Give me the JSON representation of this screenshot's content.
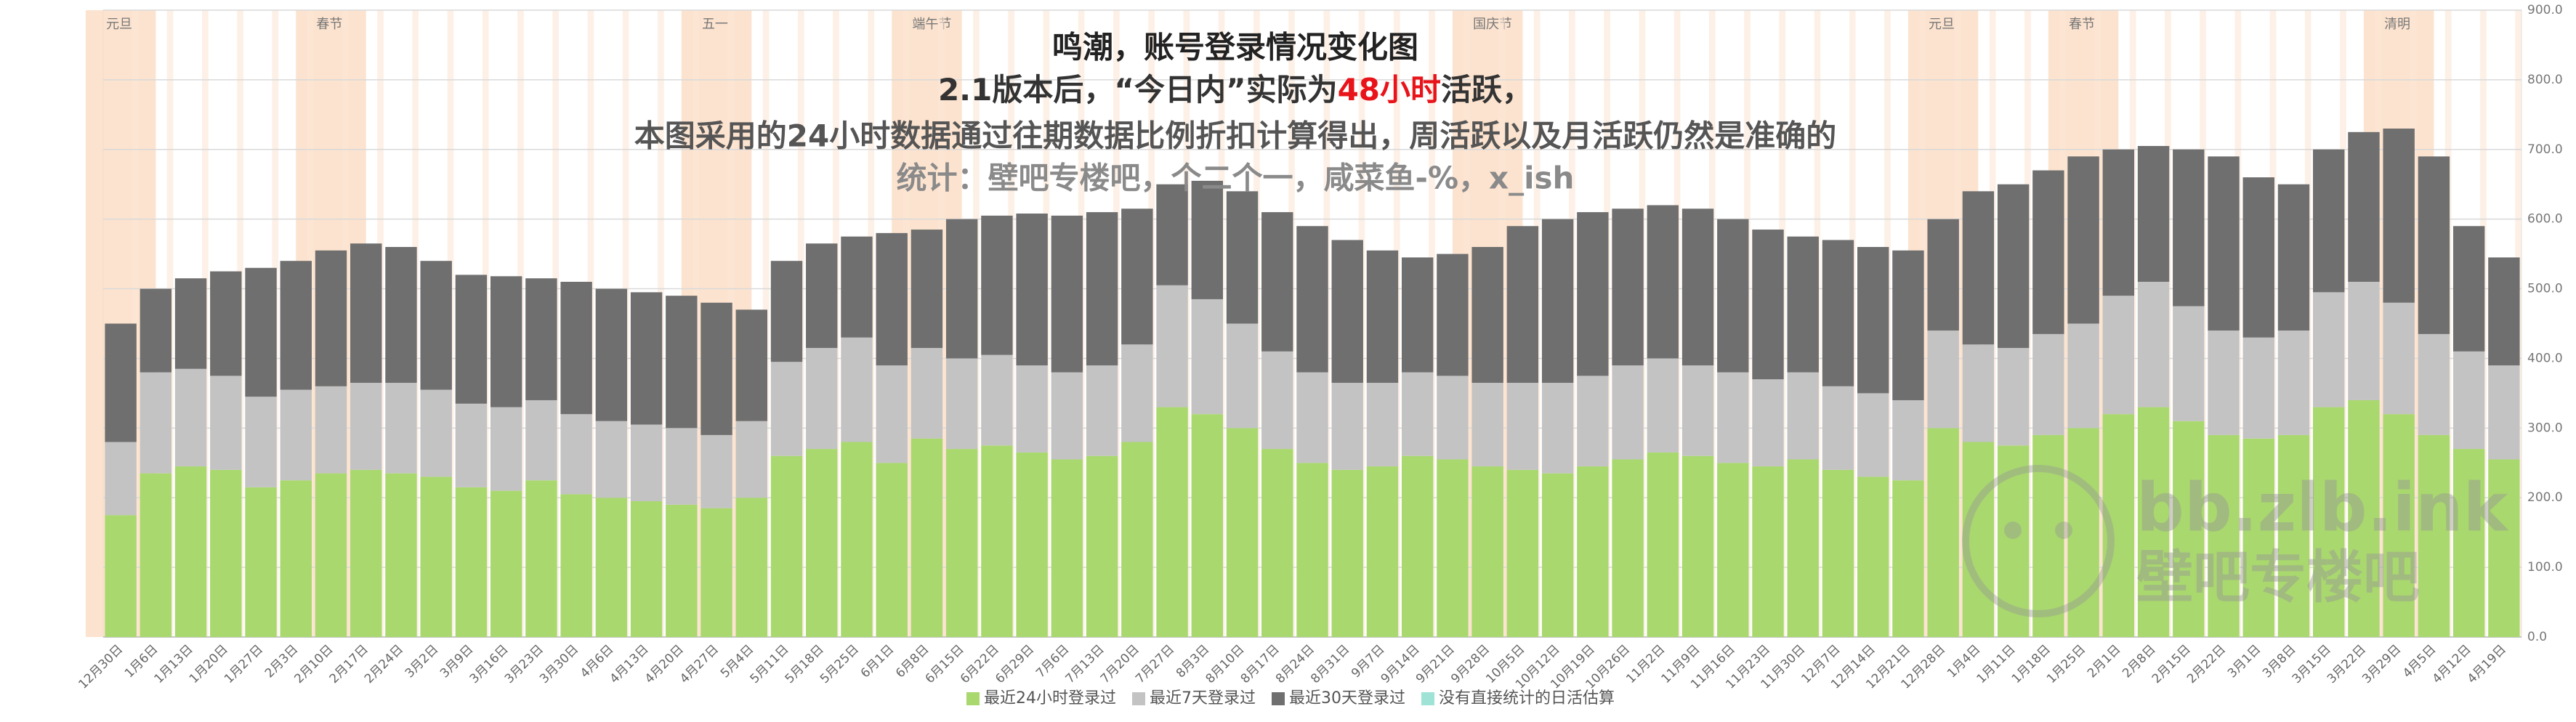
{
  "chart_data": {
    "type": "stacked_bar",
    "title": "鸣潮，账号登录情况变化图",
    "subtitle_parts": [
      "2.1版本后，“今日内”实际为",
      "48小时",
      "活跃，"
    ],
    "notes": [
      "本图采用的24小时数据通过往期数据比例折扣计算得出，周活跃以及月活跃仍然是准确的",
      "统计：壁吧专楼吧，个二个一，咸菜鱼-%，x_ish"
    ],
    "categories": [
      "12月30日",
      "1月6日",
      "1月13日",
      "1月20日",
      "1月27日",
      "2月3日",
      "2月10日",
      "2月17日",
      "2月24日",
      "3月2日",
      "3月9日",
      "3月16日",
      "3月23日",
      "3月30日",
      "4月6日",
      "4月13日",
      "4月20日",
      "4月27日",
      "5月4日",
      "5月11日",
      "5月18日",
      "5月25日",
      "6月1日",
      "6月8日",
      "6月15日",
      "6月22日",
      "6月29日",
      "7月6日",
      "7月13日",
      "7月20日",
      "7月27日",
      "8月3日",
      "8月10日",
      "8月17日",
      "8月24日",
      "8月31日",
      "9月7日",
      "9月14日",
      "9月21日",
      "9月28日",
      "10月5日",
      "10月12日",
      "10月19日",
      "10月26日",
      "11月2日",
      "11月9日",
      "11月16日",
      "11月23日",
      "11月30日",
      "12月7日",
      "12月14日",
      "12月21日",
      "12月28日",
      "1月4日",
      "1月11日",
      "1月18日",
      "1月25日",
      "2月1日",
      "2月8日",
      "2月15日",
      "2月22日",
      "3月1日",
      "3月8日",
      "3月15日",
      "3月22日",
      "3月29日",
      "4月5日",
      "4月12日",
      "4月19日"
    ],
    "series": [
      {
        "name": "最近24小时登录过",
        "color": "#a9d86e",
        "values": [
          175,
          235,
          245,
          240,
          215,
          225,
          235,
          240,
          235,
          230,
          215,
          210,
          225,
          205,
          200,
          195,
          190,
          185,
          200,
          260,
          270,
          280,
          250,
          285,
          270,
          275,
          265,
          255,
          260,
          280,
          330,
          320,
          300,
          270,
          250,
          240,
          245,
          260,
          255,
          245,
          240,
          235,
          245,
          255,
          265,
          260,
          250,
          245,
          255,
          240,
          230,
          225,
          300,
          280,
          275,
          290,
          300,
          320,
          330,
          310,
          290,
          285,
          290,
          330,
          340,
          320,
          290,
          270,
          255
        ]
      },
      {
        "name": "最近7天登录过",
        "color": "#c3c3c3",
        "values": [
          105,
          145,
          140,
          135,
          130,
          130,
          125,
          125,
          130,
          125,
          120,
          120,
          115,
          115,
          110,
          110,
          110,
          105,
          110,
          135,
          145,
          150,
          140,
          130,
          130,
          130,
          125,
          125,
          130,
          140,
          175,
          165,
          150,
          140,
          130,
          125,
          120,
          120,
          120,
          120,
          125,
          130,
          130,
          135,
          135,
          130,
          130,
          125,
          125,
          120,
          120,
          115,
          140,
          140,
          140,
          145,
          150,
          170,
          180,
          165,
          150,
          145,
          150,
          165,
          170,
          160,
          145,
          140,
          135
        ]
      },
      {
        "name": "最近30天登录过",
        "color": "#6f6f6f",
        "values": [
          170,
          120,
          130,
          150,
          185,
          185,
          195,
          200,
          195,
          185,
          185,
          188,
          175,
          190,
          190,
          190,
          190,
          190,
          160,
          145,
          150,
          145,
          190,
          170,
          200,
          200,
          218,
          225,
          220,
          195,
          145,
          170,
          190,
          200,
          210,
          205,
          190,
          165,
          175,
          195,
          225,
          235,
          235,
          225,
          220,
          225,
          220,
          215,
          195,
          210,
          210,
          215,
          160,
          220,
          235,
          235,
          240,
          210,
          195,
          225,
          250,
          230,
          210,
          205,
          215,
          250,
          255,
          180,
          155
        ]
      },
      {
        "name": "没有直接统计的日活估算",
        "color": "#9fe3d6",
        "values": [
          null,
          null,
          null,
          null,
          null,
          null,
          null,
          null,
          null,
          null,
          null,
          null,
          null,
          null,
          null,
          null,
          null,
          null,
          null,
          null,
          null,
          null,
          null,
          null,
          null,
          null,
          null,
          null,
          null,
          null,
          null,
          null,
          null,
          null,
          null,
          null,
          null,
          null,
          null,
          null,
          null,
          null,
          null,
          null,
          null,
          null,
          null,
          null,
          null,
          null,
          null,
          null,
          null,
          null,
          null,
          null,
          null,
          null,
          null,
          null,
          null,
          null,
          null,
          null,
          null,
          null,
          null,
          null,
          null
        ]
      }
    ],
    "ylim": [
      0,
      900
    ],
    "yticks": [
      {
        "value": 0,
        "label": "0.0"
      },
      {
        "value": 100,
        "label": "100.0"
      },
      {
        "value": 200,
        "label": "200.0"
      },
      {
        "value": 300,
        "label": "300.0"
      },
      {
        "value": 400,
        "label": "400.0"
      },
      {
        "value": 500,
        "label": "500.0"
      },
      {
        "value": 600,
        "label": "600.0"
      },
      {
        "value": 700,
        "label": "700.0"
      },
      {
        "value": 800,
        "label": "800.0"
      },
      {
        "value": 900,
        "label": "900.0"
      }
    ],
    "grid": true,
    "legend": "bottom",
    "holidays": [
      {
        "label": "元旦",
        "category": "12月30日"
      },
      {
        "label": "春节",
        "category": "2月10日"
      },
      {
        "label": "五一",
        "category": "4月27日"
      },
      {
        "label": "端午节",
        "category": "6月8日"
      },
      {
        "label": "国庆节",
        "category": "9月28日"
      },
      {
        "label": "元旦",
        "category": "12月28日"
      },
      {
        "label": "春节",
        "category": "1月25日"
      },
      {
        "label": "清明",
        "category": "3月29日"
      }
    ]
  },
  "watermark": {
    "domain": "bb.zlb.ink",
    "name": "壁吧专楼吧"
  }
}
